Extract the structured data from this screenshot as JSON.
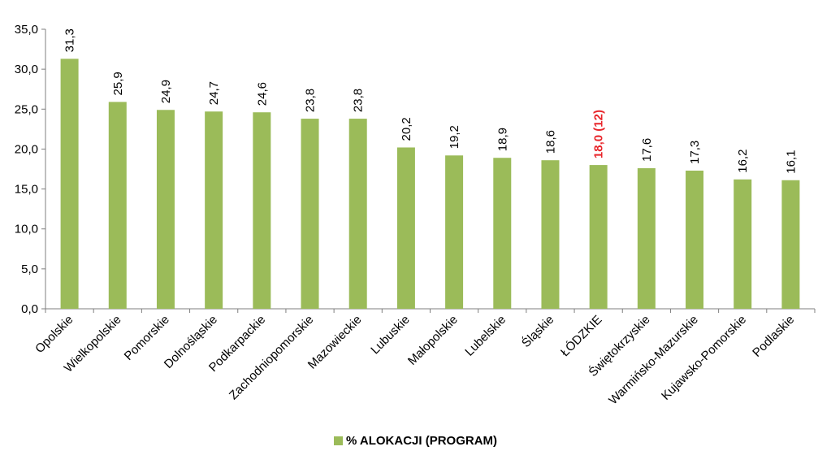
{
  "chart_data": {
    "type": "bar",
    "categories": [
      "Opolskie",
      "Wielkopolskie",
      "Pomorskie",
      "Dolnośląskie",
      "Podkarpackie",
      "Zachodniopomorskie",
      "Mazowieckie",
      "Lubuskie",
      "Małopolskie",
      "Lubelskie",
      "Śląskie",
      "ŁÓDZKIE",
      "Świętokrzyskie",
      "Warmińsko-Mazurskie",
      "Kujawsko-Pomorskie",
      "Podlaskie"
    ],
    "series": [
      {
        "name": "% ALOKACJI (PROGRAM)",
        "values": [
          31.3,
          25.9,
          24.9,
          24.7,
          24.6,
          23.8,
          23.8,
          20.2,
          19.2,
          18.9,
          18.6,
          18.0,
          17.6,
          17.3,
          16.2,
          16.1
        ],
        "color": "#9bbb59"
      }
    ],
    "data_labels": [
      "31,3",
      "25,9",
      "24,9",
      "24,7",
      "24,6",
      "23,8",
      "23,8",
      "20,2",
      "19,2",
      "18,9",
      "18,6",
      "18,0 (12)",
      "17,6",
      "17,3",
      "16,2",
      "16,1"
    ],
    "highlight": {
      "category": "ŁÓDZKIE",
      "label_color": "#e8252a"
    },
    "yticks": [
      "0,0",
      "5,0",
      "10,0",
      "15,0",
      "20,0",
      "25,0",
      "30,0",
      "35,0"
    ],
    "ylim": [
      0,
      35
    ],
    "grid": false,
    "legend_position": "bottom"
  }
}
